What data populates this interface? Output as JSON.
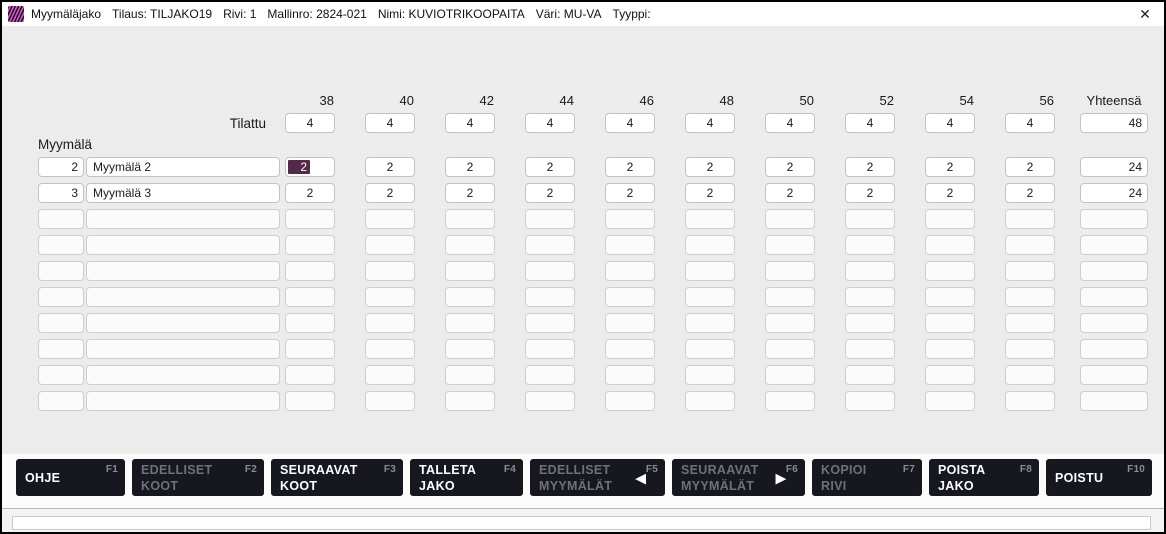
{
  "titlebar": {
    "segments": [
      "Myymäläjako",
      "Tilaus: TILJAKO19",
      "Rivi: 1",
      "Mallinro: 2824-021",
      "Nimi: KUVIOTRIKOOPAITA",
      "Väri: MU-VA",
      "Tyyppi:"
    ],
    "close_glyph": "✕"
  },
  "grid": {
    "size_headers": [
      "38",
      "40",
      "42",
      "44",
      "46",
      "48",
      "50",
      "52",
      "54",
      "56"
    ],
    "total_header": "Yhteensä",
    "ordered_label": "Tilattu",
    "ordered": {
      "values": [
        "4",
        "4",
        "4",
        "4",
        "4",
        "4",
        "4",
        "4",
        "4",
        "4"
      ],
      "total": "48"
    },
    "section_label": "Myymälä",
    "rows": [
      {
        "no": "2",
        "name": "Myymälä 2",
        "values": [
          "2",
          "2",
          "2",
          "2",
          "2",
          "2",
          "2",
          "2",
          "2",
          "2"
        ],
        "total": "24"
      },
      {
        "no": "3",
        "name": "Myymälä 3",
        "values": [
          "2",
          "2",
          "2",
          "2",
          "2",
          "2",
          "2",
          "2",
          "2",
          "2"
        ],
        "total": "24"
      },
      {
        "no": "",
        "name": "",
        "values": [
          "",
          "",
          "",
          "",
          "",
          "",
          "",
          "",
          "",
          ""
        ],
        "total": ""
      },
      {
        "no": "",
        "name": "",
        "values": [
          "",
          "",
          "",
          "",
          "",
          "",
          "",
          "",
          "",
          ""
        ],
        "total": ""
      },
      {
        "no": "",
        "name": "",
        "values": [
          "",
          "",
          "",
          "",
          "",
          "",
          "",
          "",
          "",
          ""
        ],
        "total": ""
      },
      {
        "no": "",
        "name": "",
        "values": [
          "",
          "",
          "",
          "",
          "",
          "",
          "",
          "",
          "",
          ""
        ],
        "total": ""
      },
      {
        "no": "",
        "name": "",
        "values": [
          "",
          "",
          "",
          "",
          "",
          "",
          "",
          "",
          "",
          ""
        ],
        "total": ""
      },
      {
        "no": "",
        "name": "",
        "values": [
          "",
          "",
          "",
          "",
          "",
          "",
          "",
          "",
          "",
          ""
        ],
        "total": ""
      },
      {
        "no": "",
        "name": "",
        "values": [
          "",
          "",
          "",
          "",
          "",
          "",
          "",
          "",
          "",
          ""
        ],
        "total": ""
      },
      {
        "no": "",
        "name": "",
        "values": [
          "",
          "",
          "",
          "",
          "",
          "",
          "",
          "",
          "",
          ""
        ],
        "total": ""
      }
    ],
    "selected_cell": {
      "row": 0,
      "col": 0
    }
  },
  "function_bar": {
    "buttons": [
      {
        "name": "ohje",
        "label": "OHJE",
        "fkey": "F1",
        "enabled": true
      },
      {
        "name": "edelliset-koot",
        "label": "EDELLISET\nKOOT",
        "fkey": "F2",
        "enabled": false
      },
      {
        "name": "seuraavat-koot",
        "label": "SEURAAVAT\nKOOT",
        "fkey": "F3",
        "enabled": true
      },
      {
        "name": "talleta-jako",
        "label": "TALLETA\nJAKO",
        "fkey": "F4",
        "enabled": true
      },
      {
        "name": "edelliset-myymalat",
        "label": "EDELLISET\nMYYMÄLÄT",
        "fkey": "F5",
        "enabled": false,
        "arrow": "left"
      },
      {
        "name": "seuraavat-myymalat",
        "label": "SEURAAVAT\nMYYMÄLÄT",
        "fkey": "F6",
        "enabled": false,
        "arrow": "right"
      },
      {
        "name": "kopioi-rivi",
        "label": "KOPIOI\nRIVI",
        "fkey": "F7",
        "enabled": false
      },
      {
        "name": "poista-jako",
        "label": "POISTA\nJAKO",
        "fkey": "F8",
        "enabled": true
      },
      {
        "name": "poistu",
        "label": "POISTU",
        "fkey": "F10",
        "enabled": true
      }
    ],
    "arrow_glyphs": {
      "left": "◀",
      "right": "▶"
    }
  },
  "colors": {
    "selection": "#55294c",
    "button_bg": "#171720",
    "accent_pink": "#dd55cc",
    "content_bg": "#ececec"
  }
}
